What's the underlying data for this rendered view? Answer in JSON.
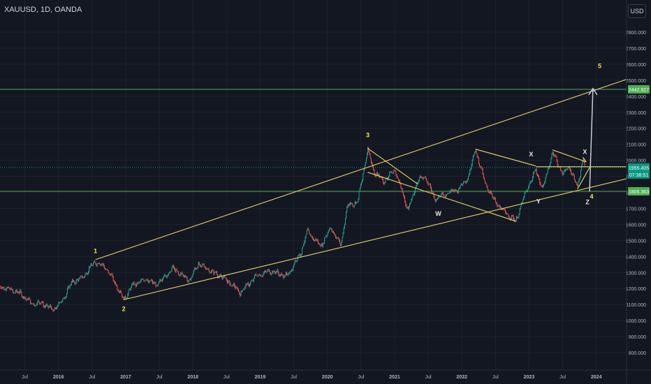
{
  "header": {
    "symbol": "XAUUSD, 1D, OANDA",
    "currency": "USD"
  },
  "chart_data": {
    "type": "candlestick",
    "symbol": "XAUUSD",
    "timeframe": "1D",
    "source": "OANDA",
    "currency": "USD",
    "ylim": [
      740,
      2900
    ],
    "y_ticks": [
      "2800.000",
      "2700.000",
      "2600.000",
      "2500.000",
      "2400.000",
      "2300.000",
      "2200.000",
      "2100.000",
      "2000.000",
      "1900.000",
      "1800.000",
      "1700.000",
      "1600.000",
      "1500.000",
      "1400.000",
      "1300.000",
      "1200.000",
      "1100.000",
      "1000.000",
      "900.000",
      "800.000"
    ],
    "y_tick_values": [
      2800,
      2700,
      2600,
      2500,
      2400,
      2300,
      2200,
      2100,
      2000,
      1900,
      1800,
      1700,
      1600,
      1500,
      1400,
      1300,
      1200,
      1100,
      1000,
      900,
      800
    ],
    "x_ticks": [
      {
        "label": "Jul",
        "t": 2015.5
      },
      {
        "label": "2016",
        "t": 2016.0
      },
      {
        "label": "Jul",
        "t": 2016.5
      },
      {
        "label": "2017",
        "t": 2017.0
      },
      {
        "label": "Jul",
        "t": 2017.5
      },
      {
        "label": "2018",
        "t": 2018.0
      },
      {
        "label": "Jul",
        "t": 2018.5
      },
      {
        "label": "2019",
        "t": 2019.0
      },
      {
        "label": "Jul",
        "t": 2019.5
      },
      {
        "label": "2020",
        "t": 2020.0
      },
      {
        "label": "Jul",
        "t": 2020.5
      },
      {
        "label": "2021",
        "t": 2021.0
      },
      {
        "label": "Jul",
        "t": 2021.5
      },
      {
        "label": "2022",
        "t": 2022.0
      },
      {
        "label": "Jul",
        "t": 2022.5
      },
      {
        "label": "2023",
        "t": 2023.0
      },
      {
        "label": "Jul",
        "t": 2023.5
      },
      {
        "label": "2024",
        "t": 2024.0
      }
    ],
    "xlim": [
      2015.13,
      2024.45
    ],
    "price_path": [
      [
        2015.13,
        1215
      ],
      [
        2015.3,
        1190
      ],
      [
        2015.45,
        1165
      ],
      [
        2015.6,
        1105
      ],
      [
        2015.75,
        1110
      ],
      [
        2015.92,
        1065
      ],
      [
        2016.05,
        1120
      ],
      [
        2016.2,
        1240
      ],
      [
        2016.35,
        1265
      ],
      [
        2016.5,
        1345
      ],
      [
        2016.55,
        1368
      ],
      [
        2016.7,
        1330
      ],
      [
        2016.85,
        1230
      ],
      [
        2016.97,
        1130
      ],
      [
        2017.1,
        1220
      ],
      [
        2017.3,
        1260
      ],
      [
        2017.45,
        1220
      ],
      [
        2017.7,
        1325
      ],
      [
        2017.95,
        1250
      ],
      [
        2018.08,
        1355
      ],
      [
        2018.3,
        1300
      ],
      [
        2018.45,
        1270
      ],
      [
        2018.6,
        1215
      ],
      [
        2018.7,
        1175
      ],
      [
        2018.95,
        1280
      ],
      [
        2019.15,
        1310
      ],
      [
        2019.4,
        1275
      ],
      [
        2019.6,
        1420
      ],
      [
        2019.7,
        1555
      ],
      [
        2019.9,
        1465
      ],
      [
        2020.05,
        1580
      ],
      [
        2020.2,
        1470
      ],
      [
        2020.3,
        1720
      ],
      [
        2020.45,
        1740
      ],
      [
        2020.6,
        2070
      ],
      [
        2020.7,
        1920
      ],
      [
        2020.85,
        1870
      ],
      [
        2021.0,
        1945
      ],
      [
        2021.2,
        1690
      ],
      [
        2021.35,
        1880
      ],
      [
        2021.45,
        1900
      ],
      [
        2021.6,
        1760
      ],
      [
        2021.75,
        1790
      ],
      [
        2021.95,
        1820
      ],
      [
        2022.1,
        1900
      ],
      [
        2022.2,
        2070
      ],
      [
        2022.35,
        1850
      ],
      [
        2022.5,
        1740
      ],
      [
        2022.6,
        1690
      ],
      [
        2022.8,
        1620
      ],
      [
        2022.95,
        1800
      ],
      [
        2023.1,
        1940
      ],
      [
        2023.2,
        1820
      ],
      [
        2023.35,
        2050
      ],
      [
        2023.5,
        1915
      ],
      [
        2023.6,
        1960
      ],
      [
        2023.72,
        1830
      ],
      [
        2023.8,
        2010
      ],
      [
        2023.84,
        1955
      ]
    ],
    "price_lines": [
      {
        "price": 2442.927,
        "label": "2442.927",
        "color": "#4caf50"
      },
      {
        "price": 1955.405,
        "label": "1955.405",
        "sublabel": "07:38:51",
        "color": "#089981"
      },
      {
        "price": 1806.363,
        "label": "1806.363",
        "color": "#4caf50"
      }
    ],
    "trendlines": [
      {
        "from": [
          2016.55,
          1380
        ],
        "to": [
          2024.45,
          2505
        ],
        "color": "#e8d56a"
      },
      {
        "from": [
          2016.97,
          1130
        ],
        "to": [
          2024.45,
          1885
        ],
        "color": "#e8d56a"
      },
      {
        "from": [
          2020.6,
          2075
        ],
        "to": [
          2021.35,
          1850
        ],
        "color": "#e8d56a"
      },
      {
        "from": [
          2020.6,
          1925
        ],
        "to": [
          2022.8,
          1620
        ],
        "color": "#e8d56a"
      },
      {
        "from": [
          2022.2,
          2070
        ],
        "to": [
          2023.1,
          1965
        ],
        "color": "#e8d56a"
      },
      {
        "from": [
          2023.35,
          2065
        ],
        "to": [
          2023.85,
          1990
        ],
        "color": "#e8d56a"
      },
      {
        "from": [
          2023.72,
          1820
        ],
        "to": [
          2023.9,
          1955
        ],
        "color": "#e8d56a"
      },
      {
        "from": [
          2023.1,
          1960
        ],
        "to": [
          2024.45,
          1960
        ],
        "color": "#e8d56a"
      },
      {
        "from": [
          2023.8,
          2020
        ],
        "to": [
          2023.85,
          1990
        ],
        "color": "#e8d56a"
      }
    ],
    "projection_arrow": {
      "from": [
        2023.9,
        1805
      ],
      "to": [
        2023.95,
        2448
      ],
      "color": "#c9ccd4"
    },
    "wave_labels": [
      {
        "text": "1",
        "t": 2016.55,
        "p": 1420,
        "color": "#f5e44a"
      },
      {
        "text": "2",
        "t": 2016.97,
        "p": 1060,
        "color": "#f5e44a"
      },
      {
        "text": "3",
        "t": 2020.6,
        "p": 2145,
        "color": "#f5e44a"
      },
      {
        "text": "4",
        "t": 2023.93,
        "p": 1760,
        "color": "#f5e44a"
      },
      {
        "text": "5",
        "t": 2024.05,
        "p": 2575,
        "color": "#f5e44a"
      },
      {
        "text": "W",
        "t": 2021.65,
        "p": 1655,
        "color": "#e6e6e6"
      },
      {
        "text": "X",
        "t": 2023.03,
        "p": 2025,
        "color": "#e6e6e6"
      },
      {
        "text": "Y",
        "t": 2023.14,
        "p": 1730,
        "color": "#e6e6e6"
      },
      {
        "text": "X",
        "t": 2023.83,
        "p": 2040,
        "color": "#e6e6e6"
      },
      {
        "text": "Z",
        "t": 2023.87,
        "p": 1725,
        "color": "#e6e6e6"
      }
    ]
  }
}
